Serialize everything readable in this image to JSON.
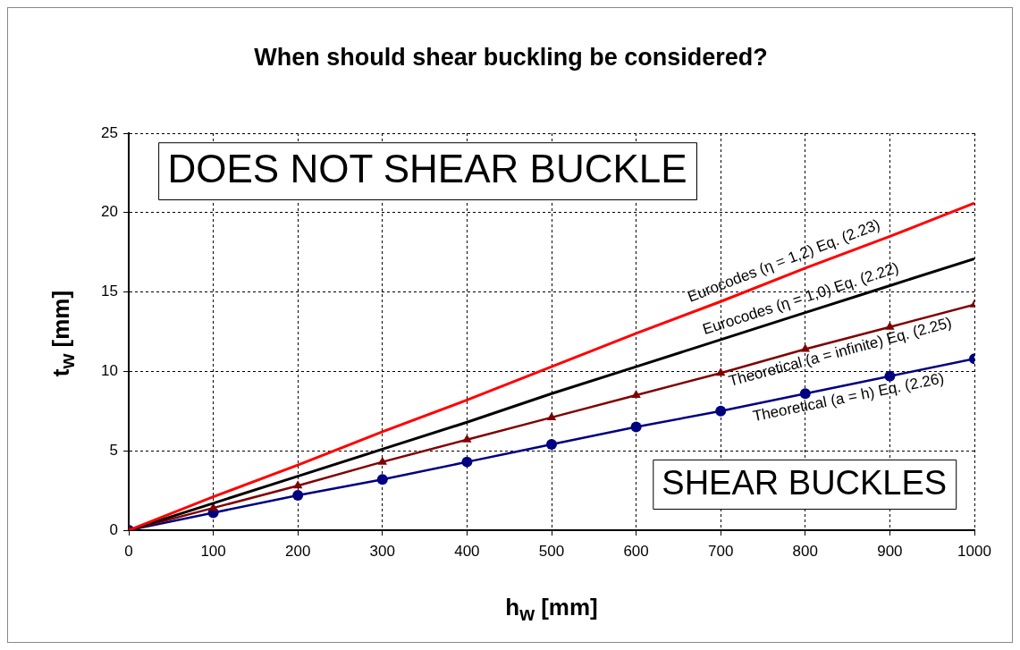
{
  "chart_data": {
    "type": "line",
    "title": "When should shear buckling be considered?",
    "xlabel": "h$_{w}$ [mm]",
    "ylabel": "t$_{w}$ [mm]",
    "x": [
      0,
      100,
      200,
      300,
      400,
      500,
      600,
      700,
      800,
      900,
      1000
    ],
    "xlim": [
      0,
      1000
    ],
    "xticks": [
      0,
      100,
      200,
      300,
      400,
      500,
      600,
      700,
      800,
      900,
      1000
    ],
    "ylim": [
      0,
      25
    ],
    "yticks": [
      0,
      5,
      10,
      15,
      20,
      25
    ],
    "grid": true,
    "annotations": [
      "DOES NOT SHEAR BUCKLE",
      "SHEAR BUCKLES"
    ],
    "series": [
      {
        "name": "Eurocodes (η = 1,2) Eq. (2.23)",
        "color": "#ff0000",
        "marker": "none",
        "values": [
          0,
          2.1,
          4.1,
          6.2,
          8.2,
          10.3,
          12.4,
          14.4,
          16.5,
          18.5,
          20.6
        ]
      },
      {
        "name": "Eurocodes (η = 1,0) Eq. (2.22)",
        "color": "#000000",
        "marker": "none",
        "values": [
          0,
          1.7,
          3.4,
          5.1,
          6.8,
          8.6,
          10.3,
          12.0,
          13.7,
          15.4,
          17.1
        ]
      },
      {
        "name": "Theoretical (a = infinite) Eq. (2.25)",
        "color": "#800000",
        "marker": "triangle",
        "values": [
          0,
          1.4,
          2.8,
          4.3,
          5.7,
          7.1,
          8.5,
          9.9,
          11.4,
          12.8,
          14.2
        ]
      },
      {
        "name": "Theoretical (a = h) Eq. (2.26)",
        "color": "#000080",
        "marker": "circle",
        "values": [
          0,
          1.1,
          2.2,
          3.2,
          4.3,
          5.4,
          6.5,
          7.5,
          8.6,
          9.7,
          10.8
        ]
      }
    ]
  }
}
